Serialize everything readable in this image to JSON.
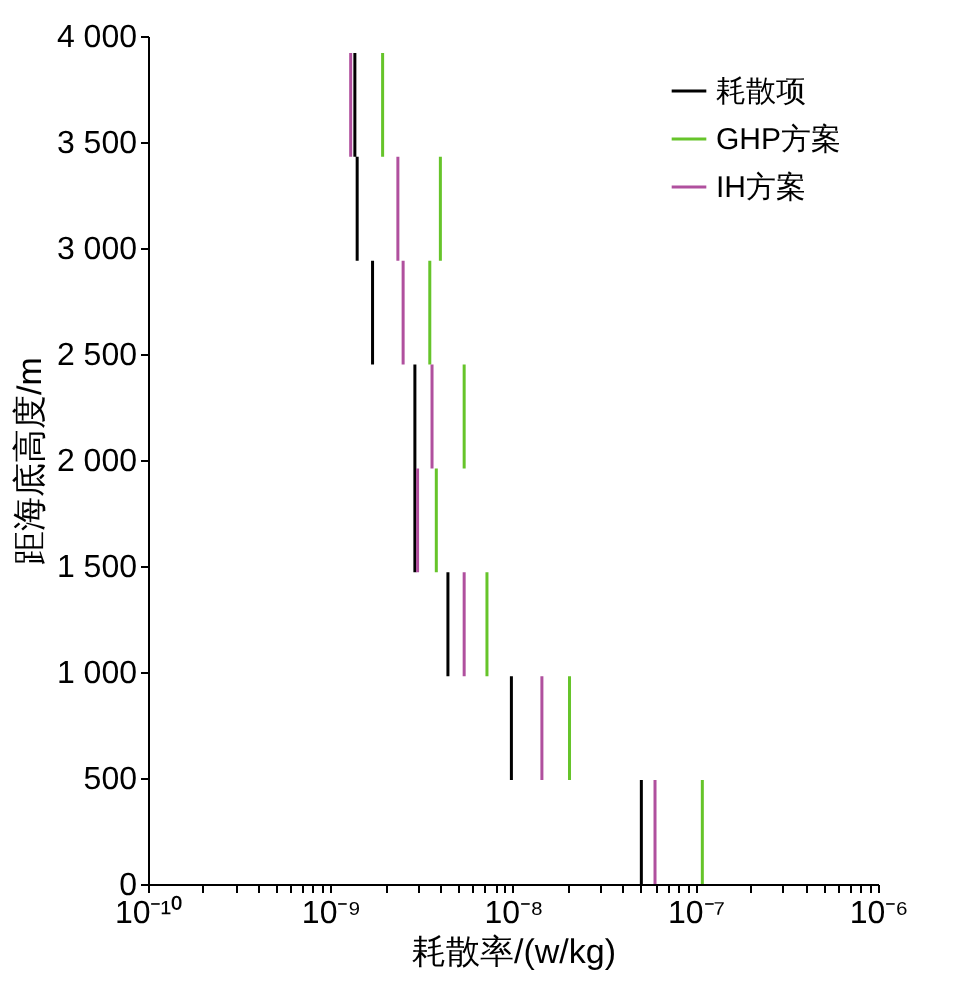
{
  "chart_data": {
    "type": "line",
    "marker": "none",
    "line_style": "solid",
    "xlabel": "耗散率/(w/kg)",
    "ylabel": "距海底高度/m",
    "log": "x",
    "grid": false,
    "legend": "top right",
    "xlim": [
      1e-10,
      1e-06
    ],
    "ylim": [
      0,
      4000
    ],
    "xticks": [
      {
        "value": 1e-10,
        "label": "10⁻¹⁰"
      },
      {
        "value": 2e-10,
        "label": null
      },
      {
        "value": 3e-10,
        "label": null
      },
      {
        "value": 4e-10,
        "label": null
      },
      {
        "value": 5e-10,
        "label": null
      },
      {
        "value": 6e-10,
        "label": null
      },
      {
        "value": 7e-10,
        "label": null
      },
      {
        "value": 8e-10,
        "label": null
      },
      {
        "value": 9e-10,
        "label": null
      },
      {
        "value": 1e-09,
        "label": "10⁻⁹"
      },
      {
        "value": 2e-09,
        "label": null
      },
      {
        "value": 3e-09,
        "label": null
      },
      {
        "value": 4e-09,
        "label": null
      },
      {
        "value": 5e-09,
        "label": null
      },
      {
        "value": 6e-09,
        "label": null
      },
      {
        "value": 7e-09,
        "label": null
      },
      {
        "value": 8e-09,
        "label": null
      },
      {
        "value": 9e-09,
        "label": null
      },
      {
        "value": 1e-08,
        "label": "10⁻⁸"
      },
      {
        "value": 2e-08,
        "label": null
      },
      {
        "value": 3e-08,
        "label": null
      },
      {
        "value": 4e-08,
        "label": null
      },
      {
        "value": 5e-08,
        "label": null
      },
      {
        "value": 6e-08,
        "label": null
      },
      {
        "value": 7e-08,
        "label": null
      },
      {
        "value": 8e-08,
        "label": null
      },
      {
        "value": 9e-08,
        "label": null
      },
      {
        "value": 1e-07,
        "label": "10⁻⁷"
      },
      {
        "value": 2e-07,
        "label": null
      },
      {
        "value": 3e-07,
        "label": null
      },
      {
        "value": 4e-07,
        "label": null
      },
      {
        "value": 5e-07,
        "label": null
      },
      {
        "value": 6e-07,
        "label": null
      },
      {
        "value": 7e-07,
        "label": null
      },
      {
        "value": 8e-07,
        "label": null
      },
      {
        "value": 9e-07,
        "label": null
      },
      {
        "value": 1e-06,
        "label": "10⁻⁶"
      }
    ],
    "yticks": [
      0,
      500,
      {
        "value": 1000,
        "label": "1 000"
      },
      {
        "value": 1500,
        "label": "1 500"
      },
      {
        "value": 2000,
        "label": "2 000"
      },
      {
        "value": 2500,
        "label": "2 500"
      },
      {
        "value": 3000,
        "label": "3 000"
      },
      {
        "value": 3500,
        "label": "3 500"
      },
      {
        "value": 4000,
        "label": "4 000"
      }
    ],
    "series": [
      {
        "name": "耗散项",
        "color": "#000000",
        "x": [
          5.05e-08,
          5.05e-08,
          null,
          9.8e-09,
          9.8e-09,
          null,
          4.4e-09,
          4.4e-09,
          null,
          2.9e-09,
          2.9e-09,
          2.9e-09,
          null,
          1.7e-09,
          1.7e-09,
          null,
          1.4e-09,
          1.4e-09,
          null,
          1.36e-09,
          1.36e-09
        ],
        "values": [
          0,
          490,
          null,
          490,
          980,
          null,
          980,
          1470,
          null,
          1470,
          1960,
          2450,
          null,
          2450,
          2940,
          null,
          2940,
          3430,
          null,
          3430,
          3920
        ]
      },
      {
        "name": "GHP方案",
        "color": "#66c42a",
        "x": [
          1.09e-07,
          1.09e-07,
          null,
          2.04e-08,
          2.04e-08,
          null,
          7.2e-09,
          7.2e-09,
          null,
          3.8e-09,
          3.8e-09,
          null,
          5.4e-09,
          5.4e-09,
          null,
          3.5e-09,
          3.5e-09,
          null,
          4e-09,
          4e-09,
          null,
          1.93e-09,
          1.93e-09
        ],
        "values": [
          0,
          490,
          null,
          490,
          980,
          null,
          980,
          1470,
          null,
          1470,
          1960,
          null,
          1960,
          2450,
          null,
          2450,
          2940,
          null,
          2940,
          3430,
          null,
          3430,
          3920
        ]
      },
      {
        "name": "IH方案",
        "color": "#b0509e",
        "x": [
          6e-08,
          6e-08,
          null,
          1.44e-08,
          1.44e-08,
          null,
          5.4e-09,
          5.4e-09,
          null,
          3e-09,
          3e-09,
          null,
          3.6e-09,
          3.6e-09,
          null,
          2.5e-09,
          2.5e-09,
          null,
          2.34e-09,
          2.34e-09,
          null,
          1.29e-09,
          1.29e-09
        ],
        "values": [
          0,
          490,
          null,
          490,
          980,
          null,
          980,
          1470,
          null,
          1470,
          1960,
          null,
          1960,
          2450,
          null,
          2450,
          2940,
          null,
          2940,
          3430,
          null,
          3430,
          3920
        ]
      }
    ]
  }
}
